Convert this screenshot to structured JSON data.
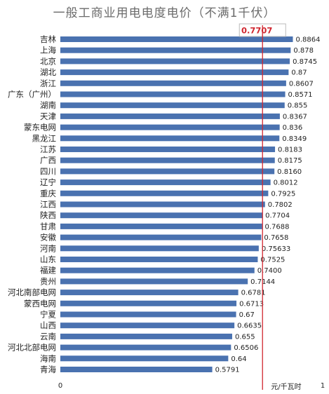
{
  "chart_data": {
    "type": "bar",
    "orientation": "horizontal",
    "title": "一般工商业用电电度电价（不满1千伏）",
    "xlabel": "元/千瓦时",
    "xlim": [
      0,
      1
    ],
    "x_ticks": [
      "0",
      "1"
    ],
    "categories": [
      "吉林",
      "上海",
      "北京",
      "湖北",
      "浙江",
      "广东（广州）",
      "湖南",
      "天津",
      "蒙东电网",
      "黑龙江",
      "江苏",
      "广西",
      "四川",
      "辽宁",
      "重庆",
      "江西",
      "陕西",
      "甘肃",
      "安徽",
      "河南",
      "山东",
      "福建",
      "贵州",
      "河北南部电网",
      "蒙西电网",
      "宁夏",
      "山西",
      "云南",
      "河北北部电网",
      "海南",
      "青海"
    ],
    "values": [
      0.8864,
      0.878,
      0.8745,
      0.87,
      0.8607,
      0.8571,
      0.855,
      0.8367,
      0.836,
      0.8349,
      0.8183,
      0.8175,
      0.816,
      0.8012,
      0.7925,
      0.7802,
      0.7704,
      0.7688,
      0.7658,
      0.75633,
      0.7525,
      0.74,
      0.7144,
      0.6781,
      0.6713,
      0.67,
      0.6635,
      0.655,
      0.6506,
      0.64,
      0.5791
    ],
    "value_labels": [
      "0.8864",
      "0.878",
      "0.8745",
      "0.87",
      "0.8607",
      "0.8571",
      "0.855",
      "0.8367",
      "0.836",
      "0.8349",
      "0.8183",
      "0.8175",
      "0.8160",
      "0.8012",
      "0.7925",
      "0.7802",
      "0.7704",
      "0.7688",
      "0.7658",
      "0.75633",
      "0.7525",
      "0.7400",
      "0.7144",
      "0.6781",
      "0.6713",
      "0.67",
      "0.6635",
      "0.655",
      "0.6506",
      "0.64",
      "0.5791"
    ],
    "reference_line": {
      "value": 0.7707,
      "label": "0.7707",
      "color": "#d0262f"
    },
    "bar_color": "#4a72b0",
    "grid": false,
    "legend": "none"
  }
}
